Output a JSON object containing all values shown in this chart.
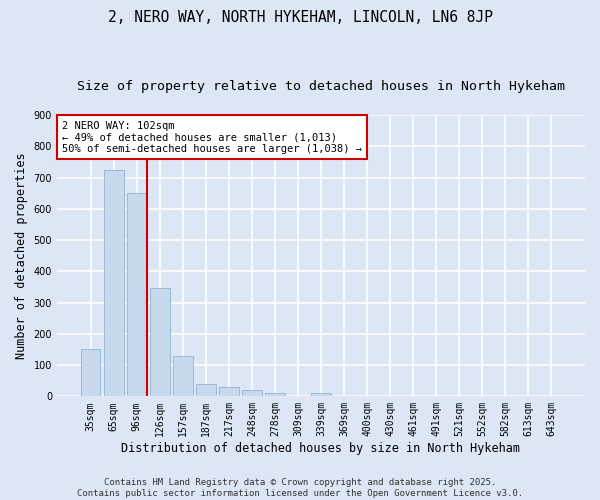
{
  "title": "2, NERO WAY, NORTH HYKEHAM, LINCOLN, LN6 8JP",
  "subtitle": "Size of property relative to detached houses in North Hykeham",
  "xlabel": "Distribution of detached houses by size in North Hykeham",
  "ylabel": "Number of detached properties",
  "bar_color": "#c9d9ed",
  "bar_edge_color": "#8fb4d4",
  "background_color": "#dce6f5",
  "grid_color": "#ffffff",
  "categories": [
    "35sqm",
    "65sqm",
    "96sqm",
    "126sqm",
    "157sqm",
    "187sqm",
    "217sqm",
    "248sqm",
    "278sqm",
    "309sqm",
    "339sqm",
    "369sqm",
    "400sqm",
    "430sqm",
    "461sqm",
    "491sqm",
    "521sqm",
    "552sqm",
    "582sqm",
    "613sqm",
    "643sqm"
  ],
  "values": [
    150,
    725,
    650,
    345,
    130,
    40,
    30,
    20,
    10,
    0,
    10,
    0,
    0,
    0,
    0,
    0,
    0,
    0,
    0,
    0,
    0
  ],
  "ylim": [
    0,
    900
  ],
  "yticks": [
    0,
    100,
    200,
    300,
    400,
    500,
    600,
    700,
    800,
    900
  ],
  "vline_color": "#cc0000",
  "vline_x_index": 2,
  "annotation_text": "2 NERO WAY: 102sqm\n← 49% of detached houses are smaller (1,013)\n50% of semi-detached houses are larger (1,038) →",
  "annotation_box_color": "#ffffff",
  "annotation_box_edge": "#cc0000",
  "footer_line1": "Contains HM Land Registry data © Crown copyright and database right 2025.",
  "footer_line2": "Contains public sector information licensed under the Open Government Licence v3.0.",
  "title_fontsize": 10.5,
  "subtitle_fontsize": 9.5,
  "label_fontsize": 8.5,
  "tick_fontsize": 7,
  "annot_fontsize": 7.5,
  "footer_fontsize": 6.5
}
